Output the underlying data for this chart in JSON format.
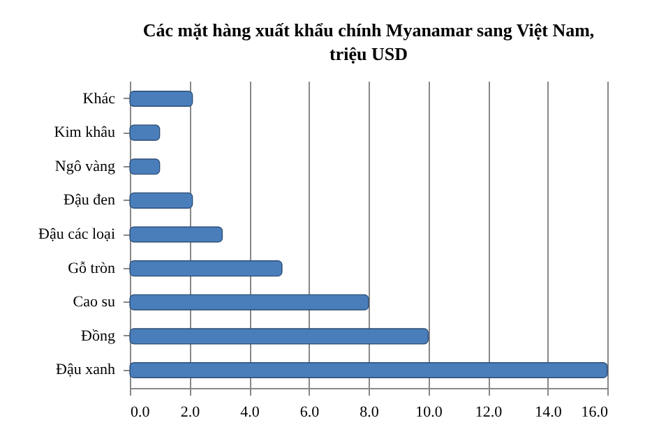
{
  "chart_data": {
    "type": "bar",
    "orientation": "horizontal",
    "title": "Các mặt hàng xuất khẩu chính  Myanamar sang Việt Nam, triệu USD",
    "categories": [
      "Khác",
      "Kim khâu",
      "Ngô vàng",
      "Đậu đen",
      "Đậu các loại",
      "Gỗ tròn",
      "Cao su",
      "Đồng",
      "Đậu xanh"
    ],
    "values": [
      2.1,
      1.0,
      1.0,
      2.1,
      3.1,
      5.1,
      8.0,
      10.0,
      16.0
    ],
    "color": "#4a7ebb",
    "xlim": [
      0,
      16
    ],
    "xticks": [
      {
        "value": 0,
        "label": "0.0"
      },
      {
        "value": 2,
        "label": "2.0"
      },
      {
        "value": 4,
        "label": "4.0"
      },
      {
        "value": 6,
        "label": "6.0"
      },
      {
        "value": 8,
        "label": "8.0"
      },
      {
        "value": 10,
        "label": "10.0"
      },
      {
        "value": 12,
        "label": "12.0"
      },
      {
        "value": 14,
        "label": "14.0"
      },
      {
        "value": 16,
        "label": "16.0"
      }
    ],
    "grid": "x"
  }
}
